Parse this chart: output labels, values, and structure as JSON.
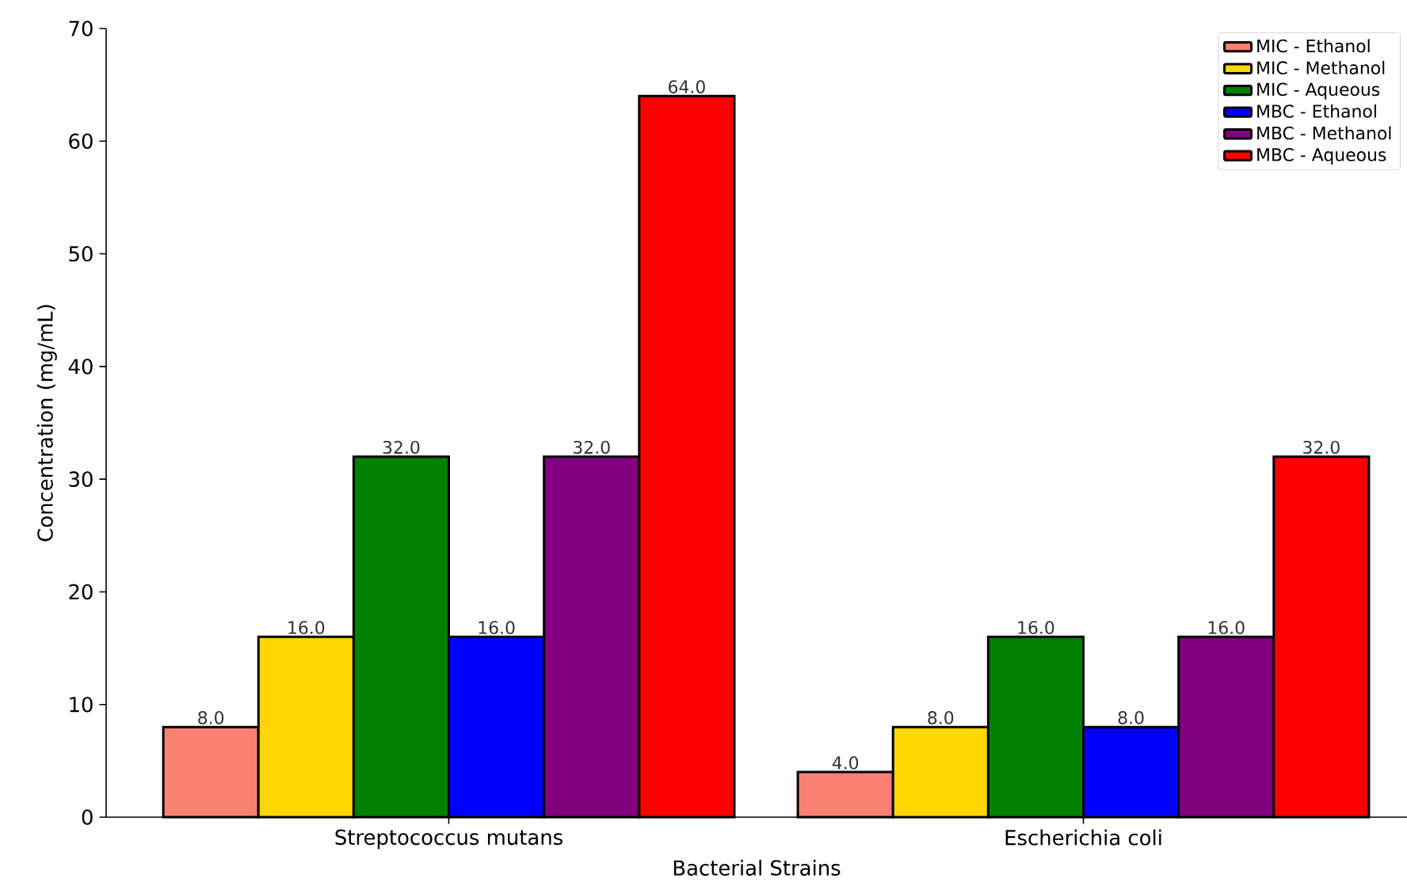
{
  "chart_data": {
    "type": "bar",
    "xlabel": "Bacterial Strains",
    "ylabel": "Concentration (mg/mL)",
    "categories": [
      "Streptococcus mutans",
      "Escherichia coli"
    ],
    "series": [
      {
        "name": "MIC - Ethanol",
        "color": "#fa8072",
        "values": [
          8.0,
          4.0
        ],
        "value_labels": [
          "8.0",
          "4.0"
        ]
      },
      {
        "name": "MIC - Methanol",
        "color": "#ffd700",
        "values": [
          16.0,
          8.0
        ],
        "value_labels": [
          "16.0",
          "8.0"
        ]
      },
      {
        "name": "MIC - Aqueous",
        "color": "#008000",
        "values": [
          32.0,
          16.0
        ],
        "value_labels": [
          "32.0",
          "16.0"
        ]
      },
      {
        "name": "MBC - Ethanol",
        "color": "#0000ff",
        "values": [
          16.0,
          8.0
        ],
        "value_labels": [
          "16.0",
          "8.0"
        ]
      },
      {
        "name": "MBC - Methanol",
        "color": "#800080",
        "values": [
          32.0,
          16.0
        ],
        "value_labels": [
          "32.0",
          "16.0"
        ]
      },
      {
        "name": "MBC - Aqueous",
        "color": "#ff0000",
        "values": [
          64.0,
          32.0
        ],
        "value_labels": [
          "64.0",
          "32.0"
        ]
      }
    ],
    "ylim": [
      0,
      70
    ],
    "yticks": [
      0,
      10,
      20,
      30,
      40,
      50,
      60,
      70
    ],
    "grid": false,
    "legend": "top right"
  }
}
